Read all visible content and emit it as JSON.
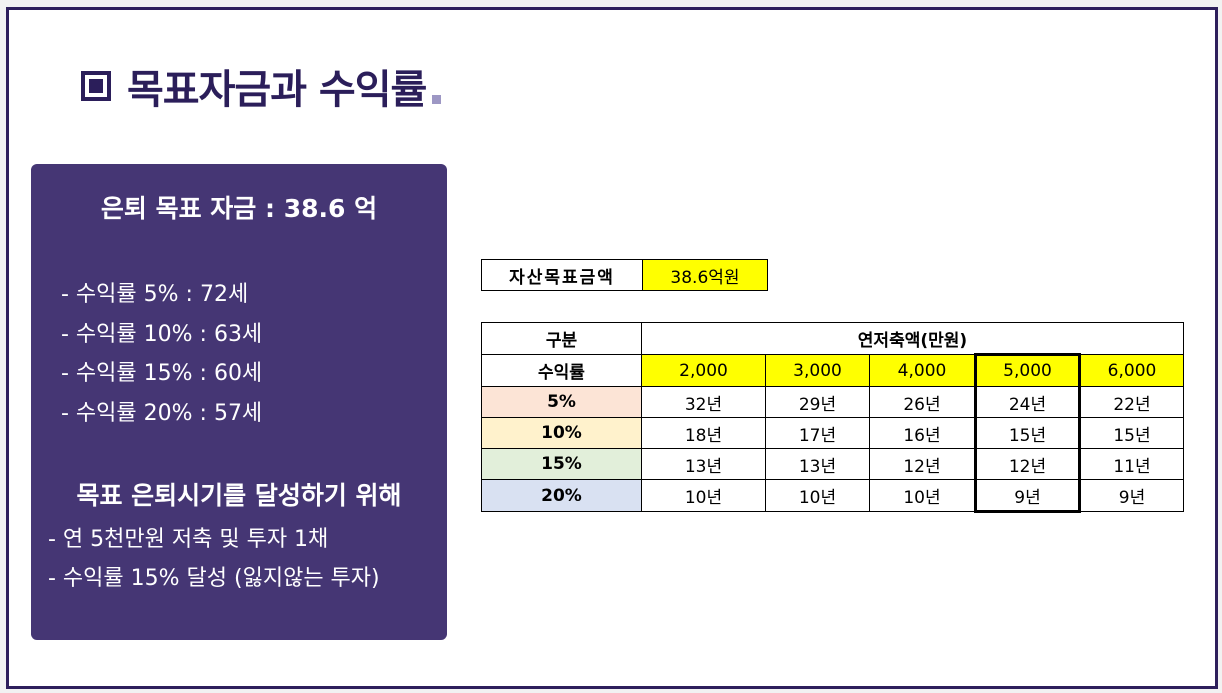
{
  "title": "목표자금과 수익률",
  "panel": {
    "heading": "은퇴 목표 자금 : 38.6 억",
    "returns": [
      "- 수익률 5% : 72세",
      "- 수익률 10% : 63세",
      "- 수익률 15% : 60세",
      "- 수익률 20% : 57세"
    ],
    "subheading": "목표 은퇴시기를 달성하기 위해",
    "actions": [
      "- 연 5천만원 저축 및 투자 1채",
      "- 수익률 15% 달성 (잃지않는 투자)"
    ]
  },
  "asset_goal": {
    "label": "자산목표금액",
    "value": "38.6억원"
  },
  "table": {
    "category_label": "구분",
    "savings_label": "연저축액(만원)",
    "rate_label": "수익률",
    "columns": [
      "2,000",
      "3,000",
      "4,000",
      "5,000",
      "6,000"
    ],
    "rows": [
      {
        "rate": "5%",
        "color": "#fce4d6",
        "values": [
          "32년",
          "29년",
          "26년",
          "24년",
          "22년"
        ]
      },
      {
        "rate": "10%",
        "color": "#fff2cc",
        "values": [
          "18년",
          "17년",
          "16년",
          "15년",
          "15년"
        ]
      },
      {
        "rate": "15%",
        "color": "#e2efda",
        "values": [
          "13년",
          "13년",
          "12년",
          "12년",
          "11년"
        ]
      },
      {
        "rate": "20%",
        "color": "#d9e1f2",
        "values": [
          "10년",
          "10년",
          "10년",
          "9년",
          "9년"
        ]
      }
    ]
  },
  "colors": {
    "panel": "#453674",
    "title": "#2b1e5a",
    "highlight": "#ffff00"
  }
}
